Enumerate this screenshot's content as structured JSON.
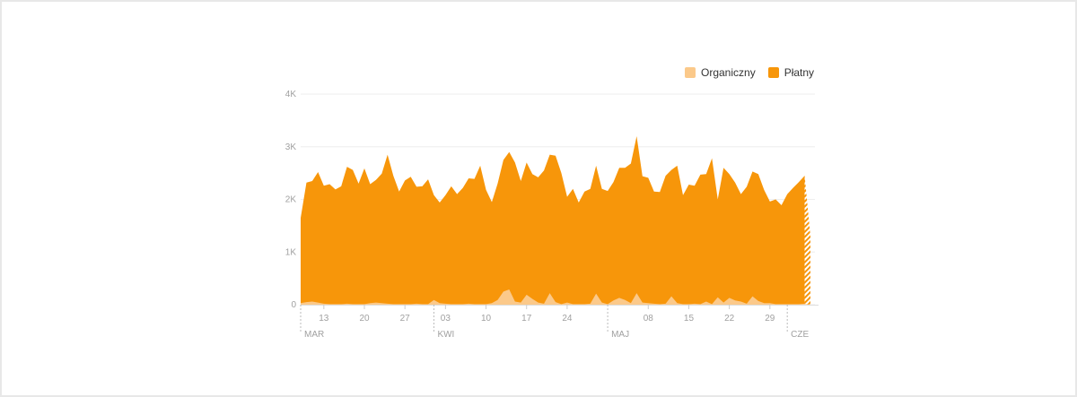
{
  "colors": {
    "organic": "#fbc98a",
    "paid": "#f7960a",
    "grid": "#eeeeee",
    "axis_text": "#a0a0a0"
  },
  "legend": [
    {
      "label": "Organiczny",
      "color": "#fbc98a"
    },
    {
      "label": "Płatny",
      "color": "#f7960a"
    }
  ],
  "chart_data": {
    "type": "area",
    "stacked": false,
    "ylim": [
      0,
      4000
    ],
    "y_ticks": [
      {
        "value": 0,
        "label": "0"
      },
      {
        "value": 1000,
        "label": "1K"
      },
      {
        "value": 2000,
        "label": "2K"
      },
      {
        "value": 3000,
        "label": "3K"
      },
      {
        "value": 4000,
        "label": "4K"
      }
    ],
    "x_start": "2023-03-09",
    "x_end": "2023-06-01",
    "x_ticks": [
      {
        "date": "2023-03-13",
        "label": "13"
      },
      {
        "date": "2023-03-20",
        "label": "20"
      },
      {
        "date": "2023-03-27",
        "label": "27"
      },
      {
        "date": "2023-04-03",
        "label": "03"
      },
      {
        "date": "2023-04-10",
        "label": "10"
      },
      {
        "date": "2023-04-17",
        "label": "17"
      },
      {
        "date": "2023-04-24",
        "label": "24"
      },
      {
        "date": "2023-05-08",
        "label": "08"
      },
      {
        "date": "2023-05-15",
        "label": "15"
      },
      {
        "date": "2023-05-22",
        "label": "22"
      },
      {
        "date": "2023-05-29",
        "label": "29"
      }
    ],
    "month_ticks": [
      {
        "date": "2023-03-09",
        "label": "MAR"
      },
      {
        "date": "2023-04-01",
        "label": "KWI"
      },
      {
        "date": "2023-05-01",
        "label": "MAJ"
      },
      {
        "date": "2023-06-01",
        "label": "CZE"
      }
    ],
    "series": [
      {
        "name": "Płatny",
        "color": "#f7960a",
        "points": [
          [
            "2023-03-09",
            1650
          ],
          [
            "2023-03-10",
            2320
          ],
          [
            "2023-03-11",
            2350
          ],
          [
            "2023-03-12",
            2520
          ],
          [
            "2023-03-13",
            2260
          ],
          [
            "2023-03-14",
            2290
          ],
          [
            "2023-03-15",
            2190
          ],
          [
            "2023-03-16",
            2250
          ],
          [
            "2023-03-17",
            2620
          ],
          [
            "2023-03-18",
            2560
          ],
          [
            "2023-03-19",
            2300
          ],
          [
            "2023-03-20",
            2590
          ],
          [
            "2023-03-21",
            2290
          ],
          [
            "2023-03-22",
            2370
          ],
          [
            "2023-03-23",
            2490
          ],
          [
            "2023-03-24",
            2850
          ],
          [
            "2023-03-25",
            2450
          ],
          [
            "2023-03-26",
            2150
          ],
          [
            "2023-03-27",
            2360
          ],
          [
            "2023-03-28",
            2430
          ],
          [
            "2023-03-29",
            2240
          ],
          [
            "2023-03-30",
            2250
          ],
          [
            "2023-03-31",
            2380
          ],
          [
            "2023-04-01",
            2080
          ],
          [
            "2023-04-02",
            1940
          ],
          [
            "2023-04-03",
            2080
          ],
          [
            "2023-04-04",
            2250
          ],
          [
            "2023-04-05",
            2100
          ],
          [
            "2023-04-06",
            2220
          ],
          [
            "2023-04-07",
            2400
          ],
          [
            "2023-04-08",
            2390
          ],
          [
            "2023-04-09",
            2640
          ],
          [
            "2023-04-10",
            2180
          ],
          [
            "2023-04-11",
            1950
          ],
          [
            "2023-04-12",
            2300
          ],
          [
            "2023-04-13",
            2750
          ],
          [
            "2023-04-14",
            2900
          ],
          [
            "2023-04-15",
            2700
          ],
          [
            "2023-04-16",
            2350
          ],
          [
            "2023-04-17",
            2700
          ],
          [
            "2023-04-18",
            2480
          ],
          [
            "2023-04-19",
            2420
          ],
          [
            "2023-04-20",
            2550
          ],
          [
            "2023-04-21",
            2850
          ],
          [
            "2023-04-22",
            2830
          ],
          [
            "2023-04-23",
            2500
          ],
          [
            "2023-04-24",
            2050
          ],
          [
            "2023-04-25",
            2200
          ],
          [
            "2023-04-26",
            1940
          ],
          [
            "2023-04-27",
            2150
          ],
          [
            "2023-04-28",
            2200
          ],
          [
            "2023-04-29",
            2640
          ],
          [
            "2023-04-30",
            2200
          ],
          [
            "2023-05-01",
            2160
          ],
          [
            "2023-05-02",
            2330
          ],
          [
            "2023-05-03",
            2600
          ],
          [
            "2023-05-04",
            2600
          ],
          [
            "2023-05-05",
            2680
          ],
          [
            "2023-05-06",
            3200
          ],
          [
            "2023-05-07",
            2440
          ],
          [
            "2023-05-08",
            2410
          ],
          [
            "2023-05-09",
            2150
          ],
          [
            "2023-05-10",
            2140
          ],
          [
            "2023-05-11",
            2450
          ],
          [
            "2023-05-12",
            2560
          ],
          [
            "2023-05-13",
            2640
          ],
          [
            "2023-05-14",
            2080
          ],
          [
            "2023-05-15",
            2280
          ],
          [
            "2023-05-16",
            2260
          ],
          [
            "2023-05-17",
            2470
          ],
          [
            "2023-05-18",
            2480
          ],
          [
            "2023-05-19",
            2780
          ],
          [
            "2023-05-20",
            2000
          ],
          [
            "2023-05-21",
            2600
          ],
          [
            "2023-05-22",
            2480
          ],
          [
            "2023-05-23",
            2320
          ],
          [
            "2023-05-24",
            2100
          ],
          [
            "2023-05-25",
            2240
          ],
          [
            "2023-05-26",
            2530
          ],
          [
            "2023-05-27",
            2480
          ],
          [
            "2023-05-28",
            2180
          ],
          [
            "2023-05-29",
            1960
          ],
          [
            "2023-05-30",
            2000
          ],
          [
            "2023-05-31",
            1890
          ],
          [
            "2023-06-01",
            2100
          ],
          [
            "2023-06-02",
            2220
          ],
          [
            "2023-06-03",
            2330
          ],
          [
            "2023-06-04",
            2450
          ],
          [
            "2023-06-05",
            1300
          ]
        ]
      },
      {
        "name": "Organiczny",
        "color": "#fbc98a",
        "points": [
          [
            "2023-03-09",
            30
          ],
          [
            "2023-03-10",
            50
          ],
          [
            "2023-03-11",
            60
          ],
          [
            "2023-03-12",
            40
          ],
          [
            "2023-03-13",
            20
          ],
          [
            "2023-03-14",
            10
          ],
          [
            "2023-03-15",
            10
          ],
          [
            "2023-03-16",
            10
          ],
          [
            "2023-03-17",
            20
          ],
          [
            "2023-03-18",
            10
          ],
          [
            "2023-03-19",
            10
          ],
          [
            "2023-03-20",
            10
          ],
          [
            "2023-03-21",
            30
          ],
          [
            "2023-03-22",
            40
          ],
          [
            "2023-03-23",
            30
          ],
          [
            "2023-03-24",
            20
          ],
          [
            "2023-03-25",
            10
          ],
          [
            "2023-03-26",
            10
          ],
          [
            "2023-03-27",
            10
          ],
          [
            "2023-03-28",
            10
          ],
          [
            "2023-03-29",
            20
          ],
          [
            "2023-03-30",
            10
          ],
          [
            "2023-03-31",
            10
          ],
          [
            "2023-04-01",
            90
          ],
          [
            "2023-04-02",
            30
          ],
          [
            "2023-04-03",
            20
          ],
          [
            "2023-04-04",
            10
          ],
          [
            "2023-04-05",
            10
          ],
          [
            "2023-04-06",
            10
          ],
          [
            "2023-04-07",
            20
          ],
          [
            "2023-04-08",
            10
          ],
          [
            "2023-04-09",
            10
          ],
          [
            "2023-04-10",
            10
          ],
          [
            "2023-04-11",
            30
          ],
          [
            "2023-04-12",
            90
          ],
          [
            "2023-04-13",
            250
          ],
          [
            "2023-04-14",
            290
          ],
          [
            "2023-04-15",
            60
          ],
          [
            "2023-04-16",
            40
          ],
          [
            "2023-04-17",
            190
          ],
          [
            "2023-04-18",
            110
          ],
          [
            "2023-04-19",
            40
          ],
          [
            "2023-04-20",
            20
          ],
          [
            "2023-04-21",
            220
          ],
          [
            "2023-04-22",
            50
          ],
          [
            "2023-04-23",
            10
          ],
          [
            "2023-04-24",
            40
          ],
          [
            "2023-04-25",
            10
          ],
          [
            "2023-04-26",
            10
          ],
          [
            "2023-04-27",
            10
          ],
          [
            "2023-04-28",
            20
          ],
          [
            "2023-04-29",
            210
          ],
          [
            "2023-04-30",
            40
          ],
          [
            "2023-05-01",
            10
          ],
          [
            "2023-05-02",
            80
          ],
          [
            "2023-05-03",
            130
          ],
          [
            "2023-05-04",
            90
          ],
          [
            "2023-05-05",
            30
          ],
          [
            "2023-05-06",
            220
          ],
          [
            "2023-05-07",
            40
          ],
          [
            "2023-05-08",
            30
          ],
          [
            "2023-05-09",
            20
          ],
          [
            "2023-05-10",
            10
          ],
          [
            "2023-05-11",
            20
          ],
          [
            "2023-05-12",
            160
          ],
          [
            "2023-05-13",
            30
          ],
          [
            "2023-05-14",
            10
          ],
          [
            "2023-05-15",
            10
          ],
          [
            "2023-05-16",
            20
          ],
          [
            "2023-05-17",
            10
          ],
          [
            "2023-05-18",
            60
          ],
          [
            "2023-05-19",
            10
          ],
          [
            "2023-05-20",
            140
          ],
          [
            "2023-05-21",
            40
          ],
          [
            "2023-05-22",
            130
          ],
          [
            "2023-05-23",
            80
          ],
          [
            "2023-05-24",
            60
          ],
          [
            "2023-05-25",
            20
          ],
          [
            "2023-05-26",
            160
          ],
          [
            "2023-05-27",
            70
          ],
          [
            "2023-05-28",
            30
          ],
          [
            "2023-05-29",
            30
          ],
          [
            "2023-05-30",
            10
          ],
          [
            "2023-05-31",
            10
          ],
          [
            "2023-06-01",
            10
          ],
          [
            "2023-06-02",
            10
          ],
          [
            "2023-06-03",
            10
          ],
          [
            "2023-06-04",
            20
          ],
          [
            "2023-06-05",
            10
          ]
        ]
      }
    ]
  }
}
